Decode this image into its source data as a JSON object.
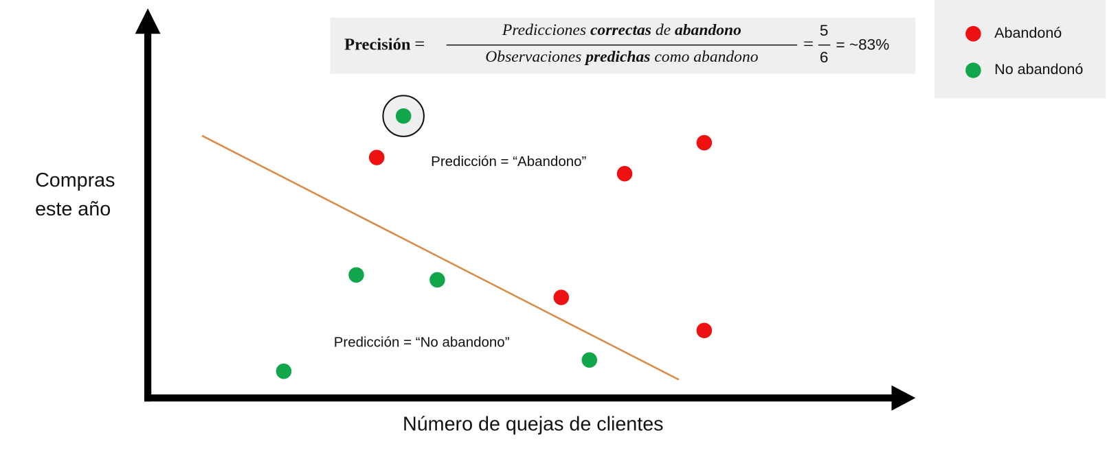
{
  "formula": {
    "label": "Precisión",
    "equals": "=",
    "numerator": [
      "Predicciones ",
      "correctas",
      " de ",
      "abandono"
    ],
    "denominator": [
      "Observaciones ",
      "predichas",
      " como abandono"
    ],
    "equals2": "=",
    "fraction_top": "5",
    "fraction_bottom": "6",
    "result": "= ~83%"
  },
  "legend": {
    "items": [
      "Abandonó",
      "No abandonó"
    ]
  },
  "axes": {
    "y_label": [
      "Compras",
      "este año"
    ],
    "x_label": "Número de quejas de clientes"
  },
  "annotations": [
    "Predicción = “Abandono”",
    "Predicción = “No abandono”"
  ]
}
